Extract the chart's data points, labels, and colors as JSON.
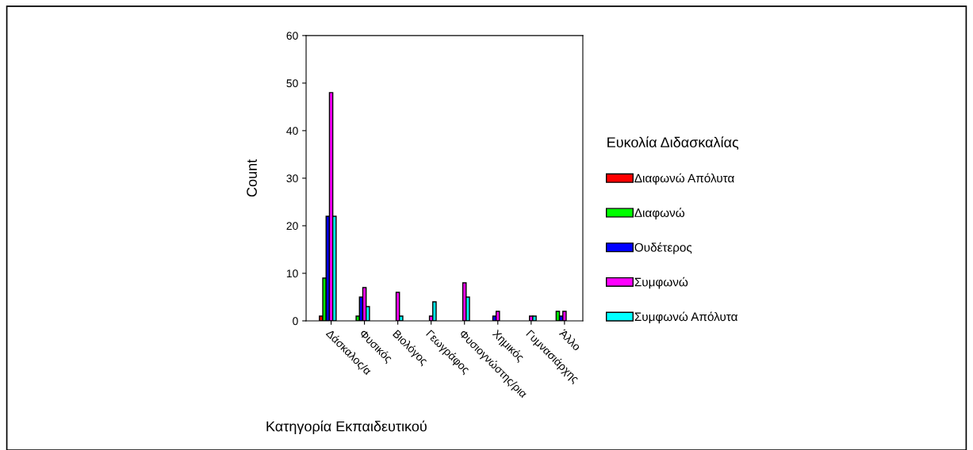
{
  "chart_data": {
    "type": "bar",
    "categories": [
      "Δάσκαλος/α",
      "Φυσικός",
      "Βιολόγος",
      "Γεωγράφος",
      "Φυσιογνώστης/ρια",
      "Χημικός",
      "Γυμνασιάρχης",
      "Άλλο"
    ],
    "series": [
      {
        "name": "Διαφωνώ Απόλυτα",
        "color": "#ff0000",
        "values": [
          1,
          null,
          null,
          null,
          null,
          null,
          null,
          null
        ]
      },
      {
        "name": "Διαφωνώ",
        "color": "#00ff00",
        "values": [
          9,
          1,
          null,
          null,
          null,
          null,
          null,
          2
        ]
      },
      {
        "name": "Ουδέτερος",
        "color": "#0000ff",
        "values": [
          22,
          5,
          null,
          null,
          null,
          1,
          null,
          1
        ]
      },
      {
        "name": "Συμφωνώ",
        "color": "#ff00ff",
        "values": [
          48,
          7,
          6,
          1,
          8,
          2,
          1,
          2
        ]
      },
      {
        "name": "Συμφωνώ Απόλυτα",
        "color": "#00ffff",
        "values": [
          22,
          3,
          1,
          4,
          5,
          null,
          1,
          null
        ]
      }
    ],
    "xlabel": "Κατηγορία Εκπαιδευτικού",
    "ylabel": "Count",
    "legend_title": "Ευκολία Διδασκαλίας",
    "ylim": [
      0,
      60
    ],
    "yticks": [
      0,
      10,
      20,
      30,
      40,
      50,
      60
    ],
    "grid": false,
    "legend": "right"
  }
}
